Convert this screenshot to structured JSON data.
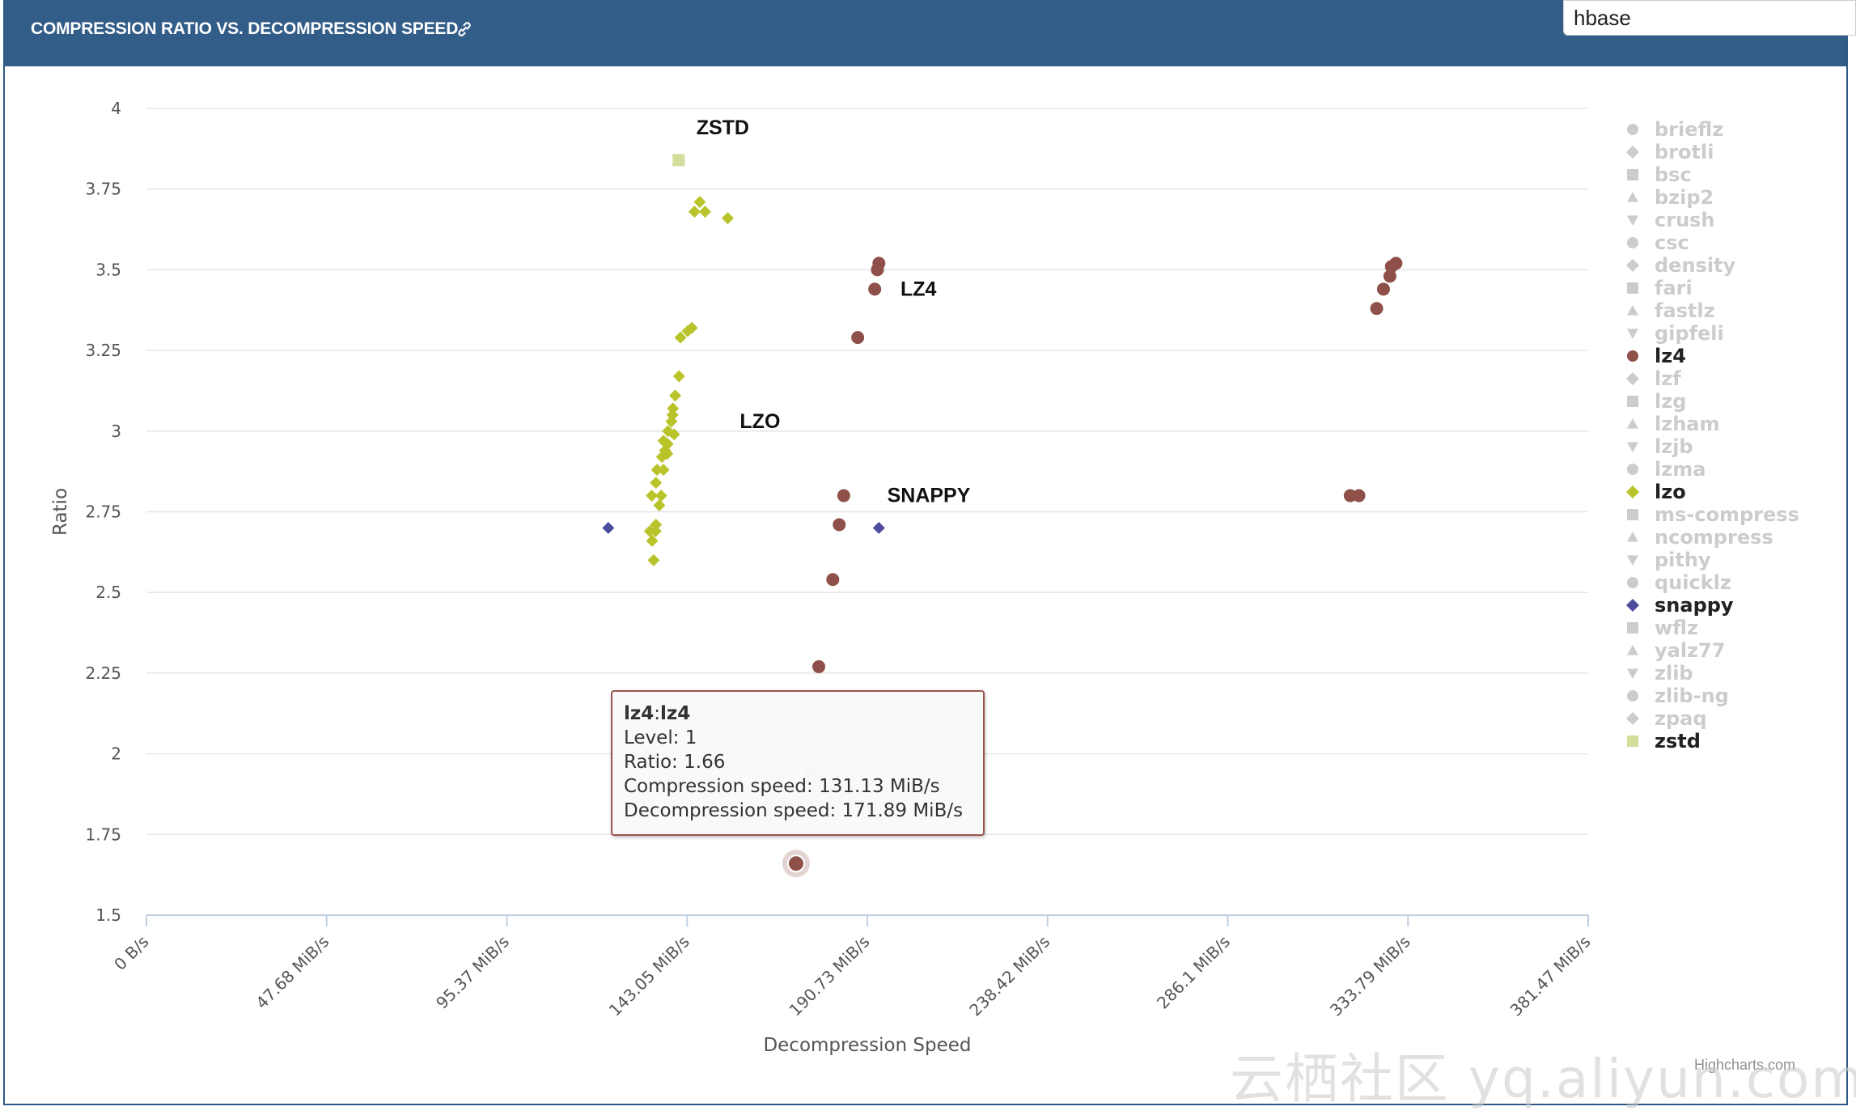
{
  "header": {
    "title": "COMPRESSION RATIO VS. DECOMPRESSION SPEED",
    "link_icon": "link-icon"
  },
  "search": {
    "value": "hbase"
  },
  "credits": "Highcharts.com",
  "watermark": "云栖社区 yq.aliyun.com",
  "tooltip": {
    "series": "lz4",
    "name": "lz4",
    "separator": ":",
    "level_label": "Level: ",
    "level": "1",
    "ratio_label": "Ratio: ",
    "ratio": "1.66",
    "cspeed_label": "Compression speed: ",
    "cspeed": "131.13 MiB/s",
    "dspeed_label": "Decompression speed: ",
    "dspeed": "171.89 MiB/s"
  },
  "chart_data": {
    "type": "scatter",
    "xlabel": "Decompression Speed",
    "ylabel": "Ratio",
    "xlim": [
      0,
      381.47
    ],
    "ylim": [
      1.5,
      4
    ],
    "x_ticks": [
      0,
      47.68,
      95.37,
      143.05,
      190.73,
      238.42,
      286.1,
      333.79,
      381.47
    ],
    "x_tick_labels": [
      "0 B/s",
      "47.68 MiB/s",
      "95.37 MiB/s",
      "143.05 MiB/s",
      "190.73 MiB/s",
      "238.42 MiB/s",
      "286.1 MiB/s",
      "333.79 MiB/s",
      "381.47 MiB/s"
    ],
    "y_ticks": [
      1.5,
      1.75,
      2,
      2.25,
      2.5,
      2.75,
      3,
      3.25,
      3.5,
      3.75,
      4
    ],
    "y_tick_labels": [
      "1.5",
      "1.75",
      "2",
      "2.25",
      "2.5",
      "2.75",
      "3",
      "3.25",
      "3.5",
      "3.75",
      "4"
    ],
    "grid": true,
    "legend_position": "right",
    "legend": [
      {
        "name": "brieflz",
        "symbol": "circle",
        "active": false
      },
      {
        "name": "brotli",
        "symbol": "diamond",
        "active": false
      },
      {
        "name": "bsc",
        "symbol": "square",
        "active": false
      },
      {
        "name": "bzip2",
        "symbol": "triangle",
        "active": false
      },
      {
        "name": "crush",
        "symbol": "triangle-down",
        "active": false
      },
      {
        "name": "csc",
        "symbol": "circle",
        "active": false
      },
      {
        "name": "density",
        "symbol": "diamond",
        "active": false
      },
      {
        "name": "fari",
        "symbol": "square",
        "active": false
      },
      {
        "name": "fastlz",
        "symbol": "triangle",
        "active": false
      },
      {
        "name": "gipfeli",
        "symbol": "triangle-down",
        "active": false
      },
      {
        "name": "lz4",
        "symbol": "circle",
        "active": true,
        "color": "#8e5049"
      },
      {
        "name": "lzf",
        "symbol": "diamond",
        "active": false
      },
      {
        "name": "lzg",
        "symbol": "square",
        "active": false
      },
      {
        "name": "lzham",
        "symbol": "triangle",
        "active": false
      },
      {
        "name": "lzjb",
        "symbol": "triangle-down",
        "active": false
      },
      {
        "name": "lzma",
        "symbol": "circle",
        "active": false
      },
      {
        "name": "lzo",
        "symbol": "diamond",
        "active": true,
        "color": "#b9c32a"
      },
      {
        "name": "ms-compress",
        "symbol": "square",
        "active": false
      },
      {
        "name": "ncompress",
        "symbol": "triangle",
        "active": false
      },
      {
        "name": "pithy",
        "symbol": "triangle-down",
        "active": false
      },
      {
        "name": "quicklz",
        "symbol": "circle",
        "active": false
      },
      {
        "name": "snappy",
        "symbol": "diamond",
        "active": true,
        "color": "#4e4c9e"
      },
      {
        "name": "wflz",
        "symbol": "square",
        "active": false
      },
      {
        "name": "yalz77",
        "symbol": "triangle",
        "active": false
      },
      {
        "name": "zlib",
        "symbol": "triangle-down",
        "active": false
      },
      {
        "name": "zlib-ng",
        "symbol": "circle",
        "active": false
      },
      {
        "name": "zpaq",
        "symbol": "diamond",
        "active": false
      },
      {
        "name": "zstd",
        "symbol": "square",
        "active": true,
        "color": "#d1df9a"
      }
    ],
    "annotations": [
      {
        "text": "ZSTD",
        "x": 145.5,
        "y": 3.92
      },
      {
        "text": "LZ4",
        "x": 199.5,
        "y": 3.42
      },
      {
        "text": "LZO",
        "x": 157,
        "y": 3.01
      },
      {
        "text": "SNAPPY",
        "x": 196,
        "y": 2.78
      }
    ],
    "series": [
      {
        "name": "zstd",
        "symbol": "square",
        "color": "#d1df9a",
        "points": [
          [
            140.8,
            3.84
          ]
        ]
      },
      {
        "name": "lzo",
        "symbol": "diamond",
        "color": "#b9c32a",
        "points": [
          [
            146.4,
            3.71
          ],
          [
            145.0,
            3.68
          ],
          [
            147.8,
            3.68
          ],
          [
            153.8,
            3.66
          ],
          [
            144.3,
            3.32
          ],
          [
            143.2,
            3.31
          ],
          [
            141.3,
            3.29
          ],
          [
            140.9,
            3.17
          ],
          [
            139.9,
            3.11
          ],
          [
            139.3,
            3.07
          ],
          [
            139.2,
            3.05
          ],
          [
            138.9,
            3.03
          ],
          [
            138.0,
            3.0
          ],
          [
            139.6,
            2.99
          ],
          [
            136.8,
            2.97
          ],
          [
            137.9,
            2.96
          ],
          [
            137.2,
            2.94
          ],
          [
            137.8,
            2.93
          ],
          [
            136.4,
            2.92
          ],
          [
            135.1,
            2.88
          ],
          [
            136.8,
            2.88
          ],
          [
            134.8,
            2.84
          ],
          [
            133.7,
            2.8
          ],
          [
            136.2,
            2.8
          ],
          [
            135.7,
            2.77
          ],
          [
            134.8,
            2.71
          ],
          [
            133.2,
            2.69
          ],
          [
            134.7,
            2.69
          ],
          [
            133.8,
            2.66
          ],
          [
            134.2,
            2.6
          ]
        ]
      },
      {
        "name": "snappy",
        "symbol": "diamond",
        "color": "#4e4c9e",
        "points": [
          [
            122.2,
            2.7
          ],
          [
            193.8,
            2.7
          ]
        ]
      },
      {
        "name": "lz4",
        "symbol": "circle",
        "color": "#8e5049",
        "points": [
          [
            193.8,
            3.52
          ],
          [
            193.4,
            3.5
          ],
          [
            192.7,
            3.44
          ],
          [
            188.2,
            3.29
          ],
          [
            184.5,
            2.8
          ],
          [
            183.3,
            2.71
          ],
          [
            181.6,
            2.54
          ],
          [
            177.9,
            2.27
          ],
          [
            171.89,
            1.66
          ],
          [
            330.6,
            3.52
          ],
          [
            329.4,
            3.51
          ],
          [
            329.0,
            3.48
          ],
          [
            327.3,
            3.44
          ],
          [
            325.5,
            3.38
          ],
          [
            318.5,
            2.8
          ],
          [
            320.8,
            2.8
          ]
        ],
        "hovered": [
          171.89,
          1.66
        ]
      },
      {
        "name": "hidden-inactive",
        "symbol": "circle",
        "color": "#e0dcdc",
        "points": [
          [
            175.5,
            1.95
          ]
        ]
      }
    ]
  }
}
